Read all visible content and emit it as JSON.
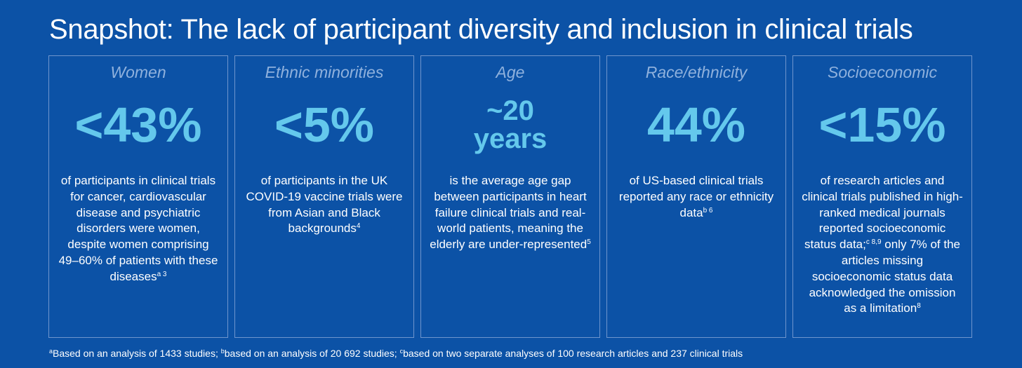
{
  "title": "Snapshot: The lack of participant diversity and inclusion in clinical trials",
  "cards": [
    {
      "category": "Women",
      "stat": "<43%",
      "desc": "of participants in clinical trials for cancer, cardiovascular disease and psychiatric disorders were women, despite women comprising 49–60% of patients with these diseases",
      "sup": "a 3"
    },
    {
      "category": "Ethnic minorities",
      "stat": "<5%",
      "desc": "of participants in the UK COVID-19 vaccine trials were from Asian and Black backgrounds",
      "sup": "4"
    },
    {
      "category": "Age",
      "stat_line1": "~20",
      "stat_line2": "years",
      "desc": "is the average age gap between participants in heart failure clinical trials and real-world patients, meaning the elderly are under-represented",
      "sup": "5"
    },
    {
      "category": "Race/ethnicity",
      "stat": "44%",
      "desc": "of US-based clinical trials reported any race or ethnicity data",
      "sup": "b 6"
    },
    {
      "category": "Socioeconomic",
      "stat": "<15%",
      "desc_part1": "of research articles and clinical trials published in high-ranked medical journals reported socioeconomic status data;",
      "sup_mid": "c 8,9",
      "desc_part2": " only 7% of the articles missing socioeconomic status data acknowledged the omission as a limitation",
      "sup": "8"
    }
  ],
  "footnote": {
    "a_sup": "a",
    "a_text": "Based on an analysis of 1433 studies; ",
    "b_sup": "b",
    "b_text": "based on an analysis of 20 692 studies; ",
    "c_sup": "c",
    "c_text": "based on two separate analyses of 100 research articles and 237 clinical trials"
  },
  "colors": {
    "background": "#0c52a6",
    "stat": "#64c8ec",
    "category": "#8fb1dd",
    "border": "#6f95cd"
  }
}
